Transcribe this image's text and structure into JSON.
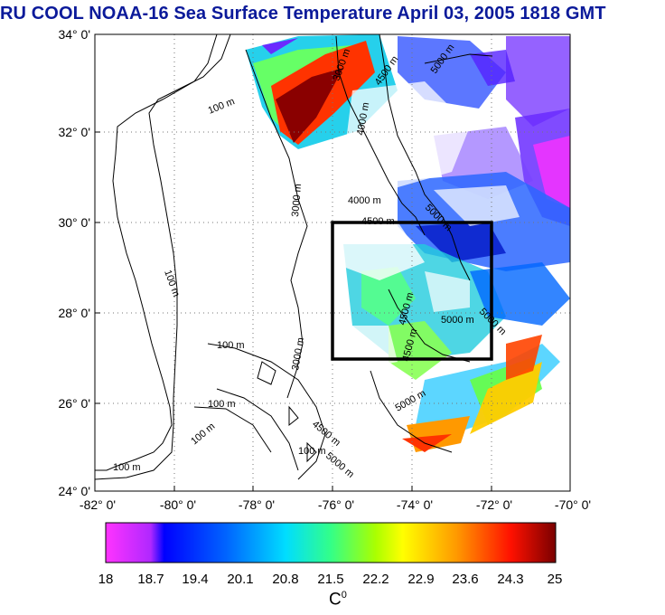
{
  "title": "RU COOL  NOAA-16 Sea Surface Temperature April 03, 2005 1818 GMT",
  "map": {
    "lat_labels": [
      "34° 0'",
      "32° 0'",
      "30° 0'",
      "28° 0'",
      "26° 0'",
      "24° 0'"
    ],
    "lon_labels": [
      "-82° 0'",
      "-80° 0'",
      "-78° 0'",
      "-76° 0'",
      "-74° 0'",
      "-72° 0'",
      "-70° 0'"
    ],
    "lat_range": [
      24,
      34
    ],
    "lon_range": [
      -82,
      -70
    ],
    "grid": "dotted",
    "contour_labels": [
      "100 m",
      "100 m",
      "100 m",
      "100 m",
      "100 m",
      "100 m",
      "100 m",
      "3000 m",
      "3000 m",
      "3000 m",
      "4000 m",
      "4000 m",
      "4500 m",
      "4500 m",
      "4500 m",
      "4500 m",
      "4500 m",
      "5000 m",
      "5000 m",
      "5000 m",
      "5000 m",
      "5000 m",
      "5000 m"
    ],
    "study_box": {
      "lon_range": [
        -76,
        -72
      ],
      "lat_range": [
        27,
        30
      ]
    }
  },
  "colorbar": {
    "ticks": [
      "18",
      "18.7",
      "19.4",
      "20.1",
      "20.8",
      "21.5",
      "22.2",
      "22.9",
      "23.6",
      "24.3",
      "25"
    ],
    "unit": "C",
    "unit_sup": "0",
    "colors": [
      "#ff22ff",
      "#9a2bff",
      "#0a00ff",
      "#0077ff",
      "#00e5ff",
      "#33ff99",
      "#ccff00",
      "#ffff00",
      "#ff9900",
      "#ff2200",
      "#7a0000"
    ]
  }
}
